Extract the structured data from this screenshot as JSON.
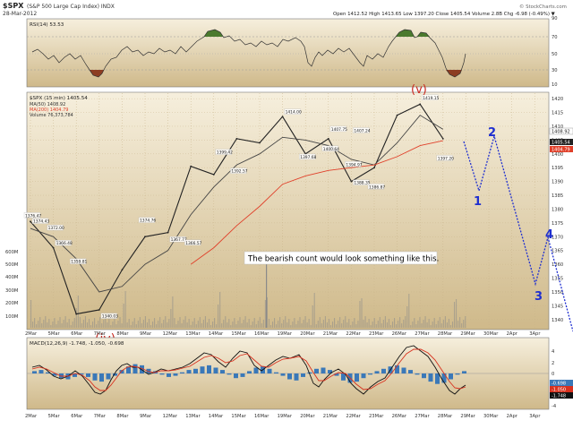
{
  "header": {
    "symbol": "$SPX",
    "description": "(S&P 500 Large Cap Index) INDX",
    "date": "28-Mar-2012",
    "ohlc": "Open 1412.52  High 1413.65  Low 1397.20  Close 1405.54  Volume 2.8B  Chg -6.98 (-0.49%) ▼",
    "watermark": "© StockCharts.com"
  },
  "rsi_panel": {
    "label": "RSI(14) 53.53",
    "y_ticks": [
      "90",
      "70",
      "50",
      "30",
      "10"
    ]
  },
  "price_panel": {
    "legend": {
      "title": "$SPX (15 min) 1405.54",
      "ma50": "MA(50) 1408.92",
      "ma200": "MA(200) 1404.79",
      "volume": "Volume 76,373,784"
    },
    "y_ticks": [
      "1420",
      "1415",
      "1410",
      "1405",
      "1400",
      "1395",
      "1390",
      "1385",
      "1380",
      "1375",
      "1370",
      "1365",
      "1360",
      "1355",
      "1350",
      "1345",
      "1340"
    ],
    "right_labels": {
      "ma50": "1408.92",
      "close": "1405.54",
      "ma200": "1404.79"
    },
    "volume_ticks": [
      "600M",
      "500M",
      "400M",
      "300M",
      "200M",
      "100M"
    ],
    "annotation": "The bearish count would look something like this."
  },
  "macd_panel": {
    "label": "MACD(12,26,9) -1.748, -1.050, -0.698",
    "y_ticks": [
      "4",
      "2",
      "0",
      "-2",
      "-4"
    ],
    "right_labels": [
      "-0.698",
      "-1.050",
      "-1.748"
    ]
  },
  "x_axis": {
    "labels": [
      "2Mar",
      "5Mar",
      "6Mar",
      "7Mar",
      "8Mar",
      "9Mar",
      "12Mar",
      "13Mar",
      "14Mar",
      "15Mar",
      "16Mar",
      "19Mar",
      "20Mar",
      "21Mar",
      "22Mar",
      "23Mar",
      "26Mar",
      "27Mar",
      "28Mar",
      "29Mar",
      "30Mar",
      "2Apr",
      "3Apr"
    ]
  },
  "wave_labels": {
    "iv": "(iv)",
    "v": "(v)",
    "w1": "1",
    "w2": "2",
    "w3": "3",
    "w4": "4"
  },
  "colors": {
    "panel_bg_top": "#f5eedc",
    "panel_bg_bottom": "#d2bc8c",
    "price": "#222222",
    "ma50": "#444444",
    "ma200": "#e0402a",
    "wave_red": "#c8281e",
    "projection": "#1f2fd0",
    "rsi_up": "#4b7a2e",
    "rsi_down": "#8c3d22",
    "macd_hist": "#3a78b8"
  },
  "chart_data": {
    "type": "line",
    "title": "$SPX (S&P 500 Large Cap Index) INDX",
    "x": [
      "2Mar",
      "5Mar",
      "6Mar",
      "7Mar",
      "8Mar",
      "9Mar",
      "12Mar",
      "13Mar",
      "14Mar",
      "15Mar",
      "16Mar",
      "19Mar",
      "20Mar",
      "21Mar",
      "22Mar",
      "23Mar",
      "26Mar",
      "27Mar",
      "28Mar"
    ],
    "ylim": [
      1337,
      1422
    ],
    "series": [
      {
        "name": "$SPX (15 min)",
        "values": [
          1375.5,
          1366,
          1342,
          1343.5,
          1358,
          1370,
          1371.5,
          1395.5,
          1392.5,
          1405.5,
          1404,
          1413.5,
          1400,
          1405.5,
          1390,
          1395,
          1414,
          1418,
          1405.5
        ]
      },
      {
        "name": "MA(50)",
        "values": [
          1373,
          1370,
          1362,
          1350,
          1352,
          1360,
          1365,
          1378,
          1388,
          1396,
          1400,
          1406,
          1405,
          1403,
          1398,
          1396,
          1404,
          1414,
          1408.9
        ]
      },
      {
        "name": "MA(200)",
        "values": [
          null,
          null,
          null,
          null,
          null,
          null,
          null,
          1360,
          1366,
          1374,
          1381,
          1389,
          1392,
          1394,
          1395,
          1396,
          1399,
          1403,
          1404.8
        ]
      }
    ],
    "point_labels": [
      {
        "x": "2Mar",
        "y": 1376.47,
        "text": "1376.47"
      },
      {
        "x": "2Mar",
        "y": 1374.43,
        "text": "1374.43"
      },
      {
        "x": "5Mar",
        "y": 1372.0,
        "text": "1372.00"
      },
      {
        "x": "5Mar",
        "y": 1366.48,
        "text": "1366.48"
      },
      {
        "x": "6Mar",
        "y": 1359.81,
        "text": "1359.81"
      },
      {
        "x": "7Mar",
        "y": 1340.03,
        "text": "1340.03"
      },
      {
        "x": "9Mar",
        "y": 1374.76,
        "text": "1374.76"
      },
      {
        "x": "12Mar",
        "y": 1367.77,
        "text": "1367.77"
      },
      {
        "x": "13Mar",
        "y": 1366.57,
        "text": "1366.57"
      },
      {
        "x": "14Mar",
        "y": 1399.42,
        "text": "1399.42"
      },
      {
        "x": "15Mar",
        "y": 1392.57,
        "text": "1392.57"
      },
      {
        "x": "19Mar",
        "y": 1414.0,
        "text": "1414.00"
      },
      {
        "x": "20Mar",
        "y": 1397.68,
        "text": "1397.68"
      },
      {
        "x": "21Mar",
        "y": 1407.75,
        "text": "1407.75"
      },
      {
        "x": "21Mar",
        "y": 1400.64,
        "text": "1400.64"
      },
      {
        "x": "22Mar",
        "y": 1407.24,
        "text": "1407.24"
      },
      {
        "x": "22Mar",
        "y": 1394.97,
        "text": "1394.97"
      },
      {
        "x": "22Mar",
        "y": 1388.35,
        "text": "1388.35"
      },
      {
        "x": "23Mar",
        "y": 1386.87,
        "text": "1386.87"
      },
      {
        "x": "27Mar",
        "y": 1419.15,
        "text": "1419.15"
      },
      {
        "x": "28Mar",
        "y": 1397.2,
        "text": "1397.20"
      }
    ]
  }
}
